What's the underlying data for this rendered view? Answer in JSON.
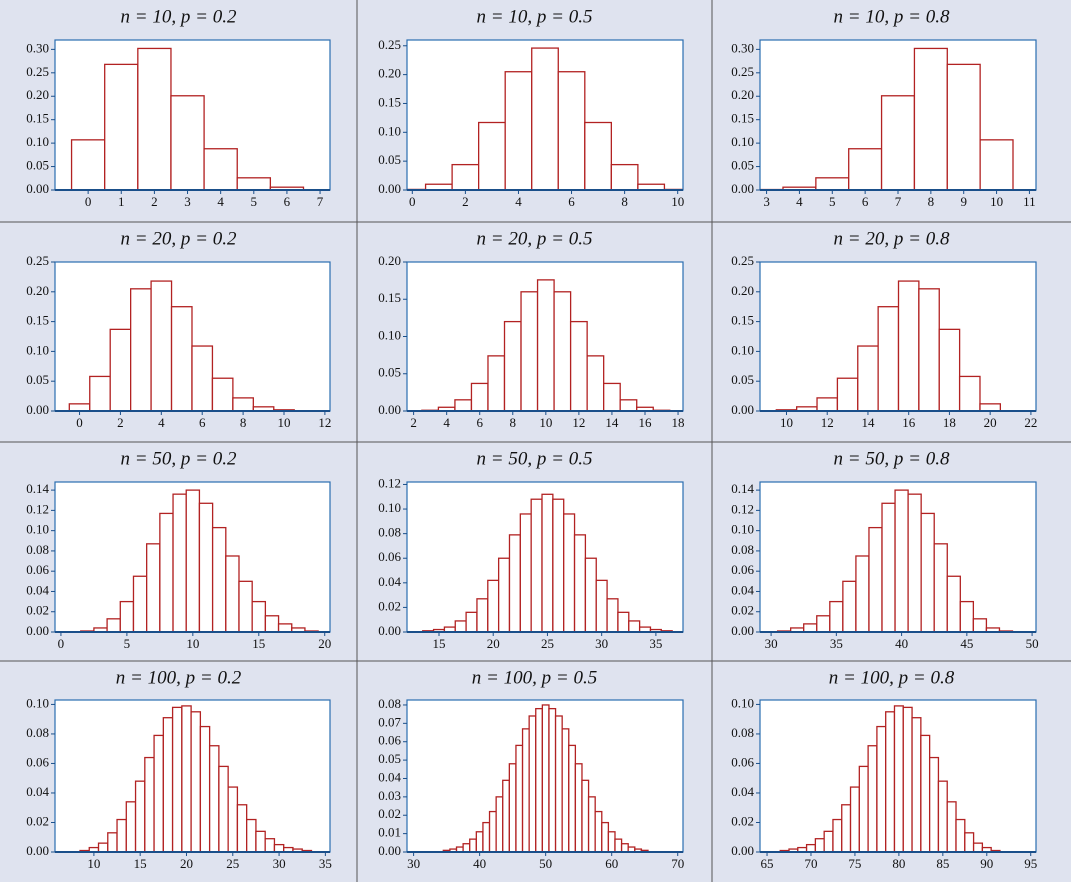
{
  "chart_data": [
    {
      "type": "bar",
      "title": "n = 10, p = 0.2",
      "color": "#b22222",
      "x": [
        0,
        1,
        2,
        3,
        4,
        5,
        6
      ],
      "values": [
        0.107,
        0.268,
        0.302,
        0.201,
        0.088,
        0.026,
        0.006
      ],
      "xlim": [
        -1,
        7.3
      ],
      "xticks": [
        0,
        1,
        2,
        3,
        4,
        5,
        6,
        7
      ],
      "ylim": [
        0,
        0.32
      ],
      "yticks": [
        {
          "value": 0,
          "label": "0.00"
        },
        {
          "value": 0.05,
          "label": "0.05"
        },
        {
          "value": 0.1,
          "label": "0.10"
        },
        {
          "value": 0.15,
          "label": "0.15"
        },
        {
          "value": 0.2,
          "label": "0.20"
        },
        {
          "value": 0.25,
          "label": "0.25"
        },
        {
          "value": 0.3,
          "label": "0.30"
        }
      ]
    },
    {
      "type": "bar",
      "title": "n = 10, p = 0.5",
      "color": "#b22222",
      "x": [
        0,
        1,
        2,
        3,
        4,
        5,
        6,
        7,
        8,
        9,
        10
      ],
      "values": [
        0.001,
        0.01,
        0.044,
        0.117,
        0.205,
        0.246,
        0.205,
        0.117,
        0.044,
        0.01,
        0.001
      ],
      "xlim": [
        -0.2,
        10.2
      ],
      "xticks": [
        0,
        2,
        4,
        6,
        8,
        10
      ],
      "ylim": [
        0,
        0.26
      ],
      "yticks": [
        {
          "value": 0,
          "label": "0.00"
        },
        {
          "value": 0.05,
          "label": "0.05"
        },
        {
          "value": 0.1,
          "label": "0.10"
        },
        {
          "value": 0.15,
          "label": "0.15"
        },
        {
          "value": 0.2,
          "label": "0.20"
        },
        {
          "value": 0.25,
          "label": "0.25"
        }
      ]
    },
    {
      "type": "bar",
      "title": "n = 10, p = 0.8",
      "color": "#b22222",
      "x": [
        3,
        4,
        5,
        6,
        7,
        8,
        9,
        10
      ],
      "values": [
        0.001,
        0.006,
        0.026,
        0.088,
        0.201,
        0.302,
        0.268,
        0.107
      ],
      "xlim": [
        2.8,
        11.2
      ],
      "xticks": [
        3,
        4,
        5,
        6,
        7,
        8,
        9,
        10,
        11
      ],
      "ylim": [
        0,
        0.32
      ],
      "yticks": [
        {
          "value": 0,
          "label": "0.00"
        },
        {
          "value": 0.05,
          "label": "0.05"
        },
        {
          "value": 0.1,
          "label": "0.10"
        },
        {
          "value": 0.15,
          "label": "0.15"
        },
        {
          "value": 0.2,
          "label": "0.20"
        },
        {
          "value": 0.25,
          "label": "0.25"
        },
        {
          "value": 0.3,
          "label": "0.30"
        }
      ]
    },
    {
      "type": "bar",
      "title": "n = 20, p = 0.2",
      "color": "#b22222",
      "x": [
        0,
        1,
        2,
        3,
        4,
        5,
        6,
        7,
        8,
        9,
        10
      ],
      "values": [
        0.012,
        0.058,
        0.137,
        0.205,
        0.218,
        0.175,
        0.109,
        0.055,
        0.022,
        0.007,
        0.002
      ],
      "xlim": [
        -1.2,
        12.25
      ],
      "xticks": [
        0,
        2,
        4,
        6,
        8,
        10,
        12
      ],
      "ylim": [
        0,
        0.25
      ],
      "yticks": [
        {
          "value": 0,
          "label": "0.00"
        },
        {
          "value": 0.05,
          "label": "0.05"
        },
        {
          "value": 0.1,
          "label": "0.10"
        },
        {
          "value": 0.15,
          "label": "0.15"
        },
        {
          "value": 0.2,
          "label": "0.20"
        },
        {
          "value": 0.25,
          "label": "0.25"
        }
      ]
    },
    {
      "type": "bar",
      "title": "n = 20, p = 0.5",
      "color": "#b22222",
      "x": [
        3,
        4,
        5,
        6,
        7,
        8,
        9,
        10,
        11,
        12,
        13,
        14,
        15,
        16,
        17
      ],
      "values": [
        0.001,
        0.005,
        0.015,
        0.037,
        0.074,
        0.12,
        0.16,
        0.176,
        0.16,
        0.12,
        0.074,
        0.037,
        0.015,
        0.005,
        0.001
      ],
      "xlim": [
        1.6,
        18.3
      ],
      "xticks": [
        2,
        4,
        6,
        8,
        10,
        12,
        14,
        16,
        18
      ],
      "ylim": [
        0,
        0.2
      ],
      "yticks": [
        {
          "value": 0,
          "label": "0.00"
        },
        {
          "value": 0.05,
          "label": "0.05"
        },
        {
          "value": 0.1,
          "label": "0.10"
        },
        {
          "value": 0.15,
          "label": "0.15"
        },
        {
          "value": 0.2,
          "label": "0.20"
        }
      ]
    },
    {
      "type": "bar",
      "title": "n = 20, p = 0.8",
      "color": "#b22222",
      "x": [
        10,
        11,
        12,
        13,
        14,
        15,
        16,
        17,
        18,
        19,
        20
      ],
      "values": [
        0.002,
        0.007,
        0.022,
        0.055,
        0.109,
        0.175,
        0.218,
        0.205,
        0.137,
        0.058,
        0.012
      ],
      "xlim": [
        8.7,
        22.25
      ],
      "xticks": [
        10,
        12,
        14,
        16,
        18,
        20,
        22
      ],
      "ylim": [
        0,
        0.25
      ],
      "yticks": [
        {
          "value": 0,
          "label": "0.00"
        },
        {
          "value": 0.05,
          "label": "0.05"
        },
        {
          "value": 0.1,
          "label": "0.10"
        },
        {
          "value": 0.15,
          "label": "0.15"
        },
        {
          "value": 0.2,
          "label": "0.20"
        },
        {
          "value": 0.25,
          "label": "0.25"
        }
      ]
    },
    {
      "type": "bar",
      "title": "n = 50, p = 0.2",
      "color": "#b22222",
      "x": [
        2,
        3,
        4,
        5,
        6,
        7,
        8,
        9,
        10,
        11,
        12,
        13,
        14,
        15,
        16,
        17,
        18,
        19
      ],
      "values": [
        0.001,
        0.004,
        0.013,
        0.03,
        0.055,
        0.087,
        0.117,
        0.136,
        0.14,
        0.127,
        0.103,
        0.075,
        0.05,
        0.03,
        0.016,
        0.008,
        0.004,
        0.001
      ],
      "xlim": [
        -0.45,
        20.4
      ],
      "xticks": [
        0,
        5,
        10,
        15,
        20
      ],
      "ylim": [
        0,
        0.148
      ],
      "yticks": [
        {
          "value": 0,
          "label": "0.00"
        },
        {
          "value": 0.02,
          "label": "0.02"
        },
        {
          "value": 0.04,
          "label": "0.04"
        },
        {
          "value": 0.06,
          "label": "0.06"
        },
        {
          "value": 0.08,
          "label": "0.08"
        },
        {
          "value": 0.1,
          "label": "0.10"
        },
        {
          "value": 0.12,
          "label": "0.12"
        },
        {
          "value": 0.14,
          "label": "0.14"
        }
      ]
    },
    {
      "type": "bar",
      "title": "n = 50, p = 0.5",
      "color": "#b22222",
      "x": [
        14,
        15,
        16,
        17,
        18,
        19,
        20,
        21,
        22,
        23,
        24,
        25,
        26,
        27,
        28,
        29,
        30,
        31,
        32,
        33,
        34,
        35,
        36
      ],
      "values": [
        0.001,
        0.002,
        0.004,
        0.009,
        0.016,
        0.027,
        0.042,
        0.06,
        0.079,
        0.096,
        0.108,
        0.112,
        0.108,
        0.096,
        0.079,
        0.06,
        0.042,
        0.027,
        0.016,
        0.009,
        0.004,
        0.002,
        0.001
      ],
      "xlim": [
        12.05,
        37.5
      ],
      "xticks": [
        15,
        20,
        25,
        30,
        35
      ],
      "ylim": [
        0,
        0.122
      ],
      "yticks": [
        {
          "value": 0,
          "label": "0.00"
        },
        {
          "value": 0.02,
          "label": "0.02"
        },
        {
          "value": 0.04,
          "label": "0.04"
        },
        {
          "value": 0.06,
          "label": "0.06"
        },
        {
          "value": 0.08,
          "label": "0.08"
        },
        {
          "value": 0.1,
          "label": "0.10"
        },
        {
          "value": 0.12,
          "label": "0.12"
        }
      ]
    },
    {
      "type": "bar",
      "title": "n = 50, p = 0.8",
      "color": "#b22222",
      "x": [
        31,
        32,
        33,
        34,
        35,
        36,
        37,
        38,
        39,
        40,
        41,
        42,
        43,
        44,
        45,
        46,
        47,
        48
      ],
      "values": [
        0.001,
        0.004,
        0.008,
        0.016,
        0.03,
        0.05,
        0.075,
        0.103,
        0.127,
        0.14,
        0.136,
        0.117,
        0.087,
        0.055,
        0.03,
        0.013,
        0.004,
        0.001
      ],
      "xlim": [
        29.15,
        50.3
      ],
      "xticks": [
        30,
        35,
        40,
        45,
        50
      ],
      "ylim": [
        0,
        0.148
      ],
      "yticks": [
        {
          "value": 0,
          "label": "0.00"
        },
        {
          "value": 0.02,
          "label": "0.02"
        },
        {
          "value": 0.04,
          "label": "0.04"
        },
        {
          "value": 0.06,
          "label": "0.06"
        },
        {
          "value": 0.08,
          "label": "0.08"
        },
        {
          "value": 0.1,
          "label": "0.10"
        },
        {
          "value": 0.12,
          "label": "0.12"
        },
        {
          "value": 0.14,
          "label": "0.14"
        }
      ]
    },
    {
      "type": "bar",
      "title": "n = 100, p = 0.2",
      "color": "#b22222",
      "x": [
        9,
        10,
        11,
        12,
        13,
        14,
        15,
        16,
        17,
        18,
        19,
        20,
        21,
        22,
        23,
        24,
        25,
        26,
        27,
        28,
        29,
        30,
        31,
        32,
        33
      ],
      "values": [
        0.001,
        0.003,
        0.006,
        0.013,
        0.022,
        0.034,
        0.048,
        0.064,
        0.079,
        0.091,
        0.098,
        0.099,
        0.095,
        0.085,
        0.072,
        0.058,
        0.044,
        0.032,
        0.022,
        0.014,
        0.009,
        0.005,
        0.003,
        0.002,
        0.001
      ],
      "xlim": [
        5.8,
        35.5
      ],
      "xticks": [
        10,
        15,
        20,
        25,
        30,
        35
      ],
      "ylim": [
        0,
        0.103
      ],
      "yticks": [
        {
          "value": 0,
          "label": "0.00"
        },
        {
          "value": 0.02,
          "label": "0.02"
        },
        {
          "value": 0.04,
          "label": "0.04"
        },
        {
          "value": 0.06,
          "label": "0.06"
        },
        {
          "value": 0.08,
          "label": "0.08"
        },
        {
          "value": 0.1,
          "label": "0.10"
        }
      ]
    },
    {
      "type": "bar",
      "title": "n = 100, p = 0.5",
      "color": "#b22222",
      "x": [
        35,
        36,
        37,
        38,
        39,
        40,
        41,
        42,
        43,
        44,
        45,
        46,
        47,
        48,
        49,
        50,
        51,
        52,
        53,
        54,
        55,
        56,
        57,
        58,
        59,
        60,
        61,
        62,
        63,
        64,
        65
      ],
      "values": [
        0.0009,
        0.0016,
        0.0027,
        0.0045,
        0.007,
        0.011,
        0.016,
        0.022,
        0.03,
        0.039,
        0.048,
        0.058,
        0.067,
        0.074,
        0.078,
        0.08,
        0.078,
        0.074,
        0.067,
        0.058,
        0.048,
        0.039,
        0.03,
        0.022,
        0.016,
        0.011,
        0.007,
        0.0045,
        0.0027,
        0.0016,
        0.0009
      ],
      "xlim": [
        29,
        70.8
      ],
      "xticks": [
        30,
        40,
        50,
        60,
        70
      ],
      "ylim": [
        0,
        0.0827
      ],
      "yticks": [
        {
          "value": 0,
          "label": "0.00"
        },
        {
          "value": 0.01,
          "label": "0.01"
        },
        {
          "value": 0.02,
          "label": "0.02"
        },
        {
          "value": 0.03,
          "label": "0.03"
        },
        {
          "value": 0.04,
          "label": "0.04"
        },
        {
          "value": 0.05,
          "label": "0.05"
        },
        {
          "value": 0.06,
          "label": "0.06"
        },
        {
          "value": 0.07,
          "label": "0.07"
        },
        {
          "value": 0.08,
          "label": "0.08"
        }
      ]
    },
    {
      "type": "bar",
      "title": "n = 100, p = 0.8",
      "color": "#b22222",
      "x": [
        67,
        68,
        69,
        70,
        71,
        72,
        73,
        74,
        75,
        76,
        77,
        78,
        79,
        80,
        81,
        82,
        83,
        84,
        85,
        86,
        87,
        88,
        89,
        90,
        91
      ],
      "values": [
        0.001,
        0.002,
        0.003,
        0.005,
        0.009,
        0.014,
        0.022,
        0.032,
        0.044,
        0.058,
        0.072,
        0.085,
        0.095,
        0.099,
        0.098,
        0.091,
        0.079,
        0.064,
        0.048,
        0.034,
        0.022,
        0.013,
        0.006,
        0.003,
        0.001
      ],
      "xlim": [
        64.2,
        95.6
      ],
      "xticks": [
        65,
        70,
        75,
        80,
        85,
        90,
        95
      ],
      "ylim": [
        0,
        0.103
      ],
      "yticks": [
        {
          "value": 0,
          "label": "0.00"
        },
        {
          "value": 0.02,
          "label": "0.02"
        },
        {
          "value": 0.04,
          "label": "0.04"
        },
        {
          "value": 0.06,
          "label": "0.06"
        },
        {
          "value": 0.08,
          "label": "0.08"
        },
        {
          "value": 0.1,
          "label": "0.10"
        }
      ]
    }
  ]
}
